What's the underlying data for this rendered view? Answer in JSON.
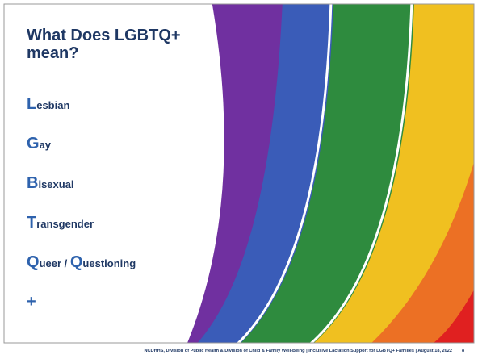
{
  "slide": {
    "title": "What Does LGBTQ+ mean?",
    "items": [
      [
        "L",
        "esbian"
      ],
      [
        "G",
        "ay"
      ],
      [
        "B",
        "isexual"
      ],
      [
        "T",
        "ransgender"
      ],
      [
        "Q",
        "ueer / ",
        "Q",
        "uestioning"
      ],
      [
        "+"
      ]
    ],
    "footer": "NCDHHS, Division of Public Health & Division of Child & Family Well-Being | Inclusive Lactation Support for LGBTQ+ Families | August 18, 2022",
    "page_number": "8"
  }
}
